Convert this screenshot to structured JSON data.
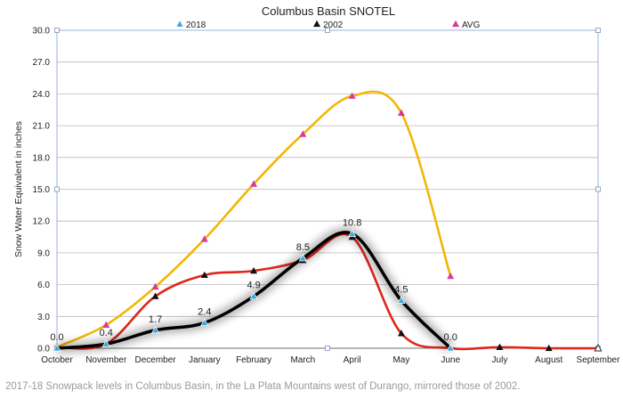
{
  "chart_data": {
    "type": "line",
    "title": "Columbus Basin SNOTEL",
    "ylabel": "Snow Water Equivalent in inches",
    "xlabel": "",
    "categories": [
      "October",
      "November",
      "December",
      "January",
      "February",
      "March",
      "April",
      "May",
      "June",
      "July",
      "August",
      "September"
    ],
    "ylim": [
      0,
      30
    ],
    "yticks": [
      "0.0",
      "3.0",
      "6.0",
      "9.0",
      "12.0",
      "15.0",
      "18.0",
      "21.0",
      "24.0",
      "27.0",
      "30.0"
    ],
    "grid": true,
    "legend_position": "top",
    "series": [
      {
        "name": "AVG",
        "color": "#f2b705",
        "marker_color": "#d63a9b",
        "values": [
          0.1,
          2.2,
          5.8,
          10.3,
          15.5,
          20.2,
          23.8,
          22.2,
          6.8,
          null,
          null,
          null
        ]
      },
      {
        "name": "2002",
        "color": "#e0261b",
        "marker_color": "#111111",
        "values": [
          0.1,
          0.4,
          4.9,
          6.9,
          7.3,
          8.3,
          10.5,
          1.4,
          0.0,
          0.1,
          0.0,
          0.0
        ]
      },
      {
        "name": "2018",
        "color": "#000000",
        "marker_color": "#3aa6e0",
        "values": [
          0.0,
          0.4,
          1.7,
          2.4,
          4.9,
          8.5,
          10.8,
          4.5,
          0.0,
          null,
          null,
          null
        ]
      }
    ],
    "data_labels": [
      {
        "text": "0.0",
        "x": "October",
        "y": 0.0
      },
      {
        "text": "0.4",
        "x": "November",
        "y": 0.4
      },
      {
        "text": "1.7",
        "x": "December",
        "y": 1.7
      },
      {
        "text": "2.4",
        "x": "January",
        "y": 2.4
      },
      {
        "text": "4.9",
        "x": "February",
        "y": 4.9
      },
      {
        "text": "8.5",
        "x": "March",
        "y": 8.5
      },
      {
        "text": "10.8",
        "x": "April",
        "y": 10.8
      },
      {
        "text": "4.5",
        "x": "May",
        "y": 4.5
      },
      {
        "text": "0.0",
        "x": "June",
        "y": 0.0
      }
    ]
  },
  "caption": "2017-18 Snowpack levels in Columbus Basin, in the La Plata Mountains west of Durango, mirrored those of 2002."
}
